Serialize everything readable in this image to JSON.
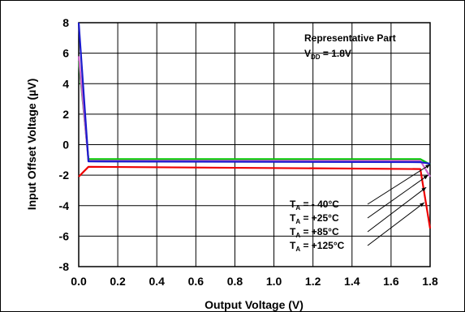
{
  "chart_data": {
    "type": "line",
    "xlabel": "Output Voltage (V)",
    "ylabel": "Input Offset Voltage (µV)",
    "xlim": [
      0.0,
      1.8
    ],
    "ylim": [
      -8,
      8
    ],
    "xticks": [
      "0.0",
      "0.2",
      "0.4",
      "0.6",
      "0.8",
      "1.0",
      "1.2",
      "1.4",
      "1.6",
      "1.8"
    ],
    "yticks": [
      "8",
      "6",
      "4",
      "2",
      "0",
      "-2",
      "-4",
      "-6",
      "-8"
    ],
    "grid": true,
    "annotation": {
      "line1": "Representative Part",
      "line2_prefix": "V",
      "line2_sub": "DD",
      "line2_suffix": " = 1.8V"
    },
    "legend": [
      {
        "prefix": "T",
        "sub": "A",
        "text": " =   - 40°C"
      },
      {
        "prefix": "T",
        "sub": "A",
        "text": " =   +25°C"
      },
      {
        "prefix": "T",
        "sub": "A",
        "text": " =   +85°C"
      },
      {
        "prefix": "T",
        "sub": "A",
        "text": " = +125°C"
      }
    ],
    "series": [
      {
        "color": "#00cc00",
        "points": [
          [
            0.0,
            5.5
          ],
          [
            0.05,
            -0.95
          ],
          [
            1.75,
            -0.95
          ],
          [
            1.8,
            -1.3
          ]
        ]
      },
      {
        "color": "#cc66cc",
        "points": [
          [
            0.0,
            5.8
          ],
          [
            0.05,
            -1.05
          ],
          [
            1.75,
            -1.05
          ],
          [
            1.8,
            -2.1
          ]
        ]
      },
      {
        "color": "#1a1acc",
        "points": [
          [
            0.0,
            8.0
          ],
          [
            0.05,
            -1.1
          ],
          [
            1.75,
            -1.15
          ],
          [
            1.8,
            -1.25
          ]
        ]
      },
      {
        "color": "#ee0000",
        "points": [
          [
            0.0,
            -2.1
          ],
          [
            0.05,
            -1.45
          ],
          [
            1.75,
            -1.6
          ],
          [
            1.8,
            -5.5
          ]
        ]
      }
    ],
    "leader_targets": [
      [
        1.8,
        -1.3
      ],
      [
        1.79,
        -2.0
      ],
      [
        1.78,
        -2.8
      ],
      [
        1.77,
        -3.8
      ]
    ]
  }
}
